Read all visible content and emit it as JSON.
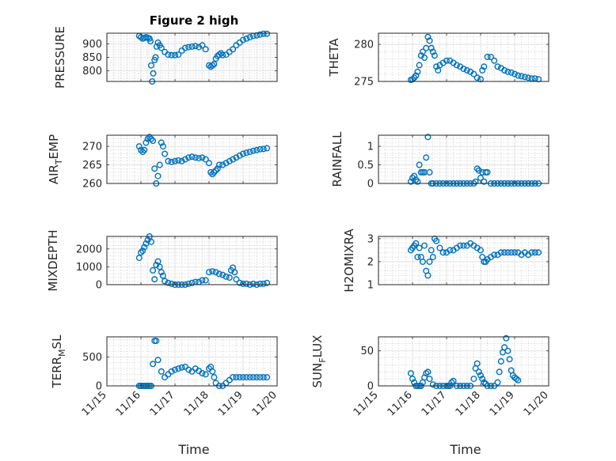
{
  "figure": {
    "title": "Figure 2 high",
    "xlabel": "Time",
    "colors": {
      "marker": "#0072bd",
      "axes": "#262626",
      "grid": "#dcdcdc",
      "background": "#ffffff"
    },
    "marker_style": "open-circle"
  },
  "chart_data": [
    {
      "id": "pressure",
      "type": "scatter",
      "ylabel": [
        "PRESSURE"
      ],
      "ylim": [
        760,
        940
      ],
      "yticks": [
        800,
        850,
        900
      ],
      "xlim": [
        15,
        20
      ],
      "xticks": [
        15,
        16,
        17,
        18,
        19,
        20
      ],
      "xticklabels": [
        "11/15",
        "11/16",
        "11/17",
        "11/18",
        "11/19",
        "11/20"
      ],
      "show_xticklabels": false,
      "grid": true,
      "x": [
        15.95,
        16.0,
        16.05,
        16.1,
        16.15,
        16.2,
        16.25,
        16.28,
        16.3,
        16.33,
        16.36,
        16.4,
        16.43,
        16.46,
        16.5,
        16.55,
        16.6,
        16.7,
        16.8,
        16.9,
        17.0,
        17.1,
        17.2,
        17.3,
        17.4,
        17.5,
        17.6,
        17.7,
        17.8,
        17.9,
        18.0,
        18.05,
        18.1,
        18.15,
        18.2,
        18.25,
        18.3,
        18.35,
        18.4,
        18.5,
        18.6,
        18.7,
        18.8,
        18.9,
        19.0,
        19.1,
        19.2,
        19.3,
        19.4,
        19.5,
        19.6,
        19.7
      ],
      "y": [
        930,
        925,
        920,
        922,
        925,
        923,
        920,
        910,
        820,
        760,
        790,
        840,
        850,
        890,
        905,
        895,
        885,
        870,
        860,
        858,
        858,
        860,
        875,
        885,
        888,
        890,
        892,
        888,
        895,
        880,
        820,
        815,
        820,
        825,
        845,
        855,
        860,
        865,
        858,
        860,
        870,
        880,
        895,
        905,
        915,
        920,
        925,
        930,
        932,
        935,
        938,
        938
      ]
    },
    {
      "id": "theta",
      "type": "scatter",
      "ylabel": [
        "THETA"
      ],
      "ylim": [
        275,
        281.5
      ],
      "yticks": [
        275,
        280
      ],
      "xlim": [
        15,
        20
      ],
      "xticks": [
        15,
        16,
        17,
        18,
        19,
        20
      ],
      "xticklabels": [
        "11/15",
        "11/16",
        "11/17",
        "11/18",
        "11/19",
        "11/20"
      ],
      "show_xticklabels": false,
      "grid": true,
      "x": [
        15.95,
        16.0,
        16.05,
        16.1,
        16.15,
        16.2,
        16.25,
        16.3,
        16.35,
        16.4,
        16.45,
        16.5,
        16.55,
        16.6,
        16.65,
        16.7,
        16.75,
        16.8,
        16.9,
        17.0,
        17.1,
        17.2,
        17.3,
        17.4,
        17.5,
        17.6,
        17.7,
        17.8,
        17.9,
        18.0,
        18.05,
        18.1,
        18.2,
        18.3,
        18.4,
        18.5,
        18.6,
        18.7,
        18.8,
        18.9,
        19.0,
        19.1,
        19.2,
        19.3,
        19.4,
        19.5,
        19.6,
        19.7
      ],
      "y": [
        275.2,
        275.3,
        275.5,
        275.8,
        276.3,
        277.2,
        278.5,
        279.0,
        278.2,
        279.5,
        281.0,
        280.5,
        279.5,
        279.0,
        278.5,
        277.0,
        276.5,
        277.2,
        277.5,
        277.8,
        277.8,
        277.5,
        277.2,
        277.0,
        276.7,
        276.5,
        276.3,
        276.0,
        275.5,
        275.3,
        276.5,
        277.0,
        278.3,
        278.3,
        277.8,
        277.0,
        276.8,
        276.5,
        276.3,
        276.2,
        276.0,
        275.8,
        275.7,
        275.6,
        275.5,
        275.4,
        275.4,
        275.3
      ]
    },
    {
      "id": "air_temp",
      "type": "scatter",
      "ylabel": [
        "AIR",
        "T",
        "EMP"
      ],
      "ylim": [
        260,
        273
      ],
      "yticks": [
        260,
        265,
        270
      ],
      "xlim": [
        15,
        20
      ],
      "xticks": [
        15,
        16,
        17,
        18,
        19,
        20
      ],
      "xticklabels": [
        "11/15",
        "11/16",
        "11/17",
        "11/18",
        "11/19",
        "11/20"
      ],
      "show_xticklabels": false,
      "grid": true,
      "x": [
        15.95,
        16.0,
        16.05,
        16.1,
        16.15,
        16.2,
        16.25,
        16.3,
        16.35,
        16.4,
        16.45,
        16.5,
        16.55,
        16.6,
        16.65,
        16.7,
        16.8,
        16.9,
        17.0,
        17.1,
        17.2,
        17.3,
        17.4,
        17.5,
        17.6,
        17.7,
        17.8,
        17.9,
        18.0,
        18.05,
        18.1,
        18.15,
        18.2,
        18.25,
        18.3,
        18.4,
        18.5,
        18.6,
        18.7,
        18.8,
        18.9,
        19.0,
        19.1,
        19.2,
        19.3,
        19.4,
        19.5,
        19.6,
        19.7
      ],
      "y": [
        270,
        269,
        268.5,
        269,
        271,
        272,
        272.5,
        272,
        271.5,
        264,
        260,
        262,
        265,
        271,
        270,
        268,
        266,
        265.8,
        266,
        266.2,
        266,
        266.5,
        267,
        267.2,
        267,
        266.8,
        267,
        266.5,
        265.5,
        263,
        262.5,
        263,
        263.5,
        264,
        265,
        265,
        265.5,
        266,
        266.5,
        267,
        267.5,
        268,
        268.3,
        268.5,
        268.8,
        269,
        269.2,
        269.3,
        269.5
      ]
    },
    {
      "id": "rainfall",
      "type": "scatter",
      "ylabel": [
        "RAINFALL"
      ],
      "ylim": [
        0,
        1.3
      ],
      "yticks": [
        0,
        0.5,
        1
      ],
      "xlim": [
        15,
        20
      ],
      "xticks": [
        15,
        16,
        17,
        18,
        19,
        20
      ],
      "xticklabels": [
        "11/15",
        "11/16",
        "11/17",
        "11/18",
        "11/19",
        "11/20"
      ],
      "show_xticklabels": false,
      "grid": true,
      "x": [
        15.95,
        16.0,
        16.05,
        16.1,
        16.15,
        16.2,
        16.25,
        16.3,
        16.35,
        16.4,
        16.45,
        16.5,
        16.55,
        16.6,
        16.7,
        16.8,
        16.9,
        17.0,
        17.1,
        17.2,
        17.3,
        17.4,
        17.5,
        17.6,
        17.7,
        17.8,
        17.85,
        17.9,
        17.95,
        18.0,
        18.05,
        18.1,
        18.15,
        18.2,
        18.3,
        18.4,
        18.5,
        18.6,
        18.7,
        18.8,
        18.9,
        19.0,
        19.1,
        19.2,
        19.3,
        19.4,
        19.5,
        19.6,
        19.7
      ],
      "y": [
        0.05,
        0.15,
        0.2,
        0.1,
        0.05,
        0.5,
        0.3,
        0.3,
        0.3,
        0.7,
        1.25,
        0.3,
        0,
        0,
        0,
        0,
        0,
        0,
        0,
        0,
        0,
        0,
        0,
        0,
        0,
        0,
        0.05,
        0.4,
        0.35,
        0.15,
        0.3,
        0.05,
        0.3,
        0.3,
        0,
        0,
        0,
        0,
        0,
        0,
        0,
        0,
        0,
        0,
        0,
        0,
        0,
        0,
        0
      ]
    },
    {
      "id": "mixdepth",
      "type": "scatter",
      "ylabel": [
        "MIXDEPTH"
      ],
      "ylim": [
        0,
        2700
      ],
      "yticks": [
        0,
        1000,
        2000
      ],
      "xlim": [
        15,
        20
      ],
      "xticks": [
        15,
        16,
        17,
        18,
        19,
        20
      ],
      "xticklabels": [
        "11/15",
        "11/16",
        "11/17",
        "11/18",
        "11/19",
        "11/20"
      ],
      "show_xticklabels": false,
      "grid": true,
      "x": [
        15.95,
        16.0,
        16.05,
        16.1,
        16.15,
        16.2,
        16.25,
        16.3,
        16.35,
        16.4,
        16.45,
        16.5,
        16.55,
        16.6,
        16.65,
        16.7,
        16.8,
        16.9,
        17.0,
        17.1,
        17.2,
        17.3,
        17.4,
        17.5,
        17.6,
        17.7,
        17.8,
        17.9,
        18.0,
        18.1,
        18.2,
        18.3,
        18.4,
        18.5,
        18.6,
        18.65,
        18.7,
        18.75,
        18.8,
        18.9,
        19.0,
        19.1,
        19.2,
        19.3,
        19.4,
        19.5,
        19.6,
        19.7
      ],
      "y": [
        1500,
        1800,
        1900,
        2100,
        2300,
        2500,
        2700,
        2400,
        800,
        300,
        1100,
        1300,
        1000,
        700,
        500,
        200,
        100,
        50,
        0,
        0,
        0,
        0,
        50,
        100,
        150,
        150,
        250,
        250,
        700,
        750,
        700,
        600,
        550,
        450,
        400,
        800,
        950,
        700,
        300,
        100,
        50,
        50,
        0,
        50,
        0,
        50,
        50,
        100
      ]
    },
    {
      "id": "h2omixra",
      "type": "scatter",
      "ylabel": [
        "H2OMIXRA"
      ],
      "ylim": [
        1,
        3.1
      ],
      "yticks": [
        1,
        2,
        3
      ],
      "xlim": [
        15,
        20
      ],
      "xticks": [
        15,
        16,
        17,
        18,
        19,
        20
      ],
      "xticklabels": [
        "11/15",
        "11/16",
        "11/17",
        "11/18",
        "11/19",
        "11/20"
      ],
      "show_xticklabels": false,
      "grid": true,
      "x": [
        15.95,
        16.0,
        16.05,
        16.1,
        16.15,
        16.2,
        16.25,
        16.3,
        16.35,
        16.4,
        16.45,
        16.5,
        16.55,
        16.6,
        16.65,
        16.7,
        16.8,
        16.9,
        17.0,
        17.1,
        17.2,
        17.3,
        17.4,
        17.5,
        17.6,
        17.7,
        17.8,
        17.9,
        18.0,
        18.05,
        18.1,
        18.15,
        18.2,
        18.3,
        18.4,
        18.5,
        18.6,
        18.7,
        18.8,
        18.9,
        19.0,
        19.1,
        19.2,
        19.3,
        19.4,
        19.5,
        19.6,
        19.7
      ],
      "y": [
        2.5,
        2.6,
        2.7,
        2.8,
        2.2,
        2.6,
        2.2,
        2.0,
        2.7,
        1.6,
        1.4,
        2.0,
        2.5,
        2.2,
        3.0,
        2.9,
        2.6,
        2.4,
        2.4,
        2.5,
        2.5,
        2.6,
        2.7,
        2.7,
        2.7,
        2.8,
        2.7,
        2.6,
        2.5,
        2.2,
        2.0,
        2.0,
        2.1,
        2.2,
        2.3,
        2.3,
        2.4,
        2.4,
        2.4,
        2.4,
        2.4,
        2.4,
        2.3,
        2.4,
        2.3,
        2.4,
        2.4,
        2.4
      ]
    },
    {
      "id": "terr_msl",
      "type": "scatter",
      "ylabel": [
        "TERR",
        "M",
        "SL"
      ],
      "ylim": [
        0,
        850
      ],
      "yticks": [
        0,
        500
      ],
      "xlim": [
        15,
        20
      ],
      "xticks": [
        15,
        16,
        17,
        18,
        19,
        20
      ],
      "xticklabels": [
        "11/15",
        "11/16",
        "11/17",
        "11/18",
        "11/19",
        "11/20"
      ],
      "show_xticklabels": true,
      "grid": true,
      "x": [
        15.95,
        16.0,
        16.05,
        16.1,
        16.15,
        16.2,
        16.25,
        16.3,
        16.35,
        16.4,
        16.45,
        16.5,
        16.6,
        16.7,
        16.8,
        16.9,
        17.0,
        17.1,
        17.2,
        17.3,
        17.4,
        17.5,
        17.6,
        17.7,
        17.8,
        17.9,
        18.0,
        18.05,
        18.1,
        18.15,
        18.2,
        18.3,
        18.4,
        18.5,
        18.6,
        18.7,
        18.8,
        18.9,
        19.0,
        19.1,
        19.2,
        19.3,
        19.4,
        19.5,
        19.6,
        19.7
      ],
      "y": [
        0,
        0,
        0,
        0,
        0,
        0,
        0,
        0,
        380,
        780,
        780,
        450,
        250,
        150,
        200,
        250,
        280,
        300,
        320,
        330,
        280,
        250,
        300,
        260,
        220,
        200,
        300,
        330,
        250,
        150,
        50,
        0,
        0,
        50,
        100,
        150,
        150,
        150,
        150,
        150,
        150,
        150,
        150,
        150,
        150,
        150
      ]
    },
    {
      "id": "sun_flux",
      "type": "scatter",
      "ylabel": [
        "SUN",
        "F",
        "LUX"
      ],
      "ylim": [
        0,
        70
      ],
      "yticks": [
        0,
        50
      ],
      "xlim": [
        15,
        20
      ],
      "xticks": [
        15,
        16,
        17,
        18,
        19,
        20
      ],
      "xticklabels": [
        "11/15",
        "11/16",
        "11/17",
        "11/18",
        "11/19",
        "11/20"
      ],
      "show_xticklabels": true,
      "grid": true,
      "x": [
        15.95,
        16.0,
        16.05,
        16.1,
        16.15,
        16.2,
        16.25,
        16.3,
        16.35,
        16.4,
        16.45,
        16.5,
        16.6,
        16.7,
        16.8,
        16.9,
        17.0,
        17.05,
        17.1,
        17.15,
        17.2,
        17.3,
        17.4,
        17.5,
        17.6,
        17.7,
        17.8,
        17.85,
        17.9,
        17.95,
        18.0,
        18.05,
        18.1,
        18.15,
        18.2,
        18.3,
        18.4,
        18.5,
        18.55,
        18.6,
        18.65,
        18.7,
        18.75,
        18.8,
        18.85,
        18.9,
        18.95,
        19.0,
        19.05,
        19.1
      ],
      "y": [
        18,
        10,
        5,
        0,
        0,
        0,
        0,
        5,
        12,
        18,
        20,
        10,
        2,
        0,
        0,
        0,
        0,
        0,
        0,
        5,
        7,
        0,
        0,
        0,
        0,
        0,
        10,
        25,
        32,
        20,
        15,
        10,
        5,
        3,
        0,
        0,
        0,
        5,
        20,
        35,
        48,
        55,
        68,
        50,
        38,
        22,
        15,
        12,
        10,
        8
      ]
    }
  ]
}
